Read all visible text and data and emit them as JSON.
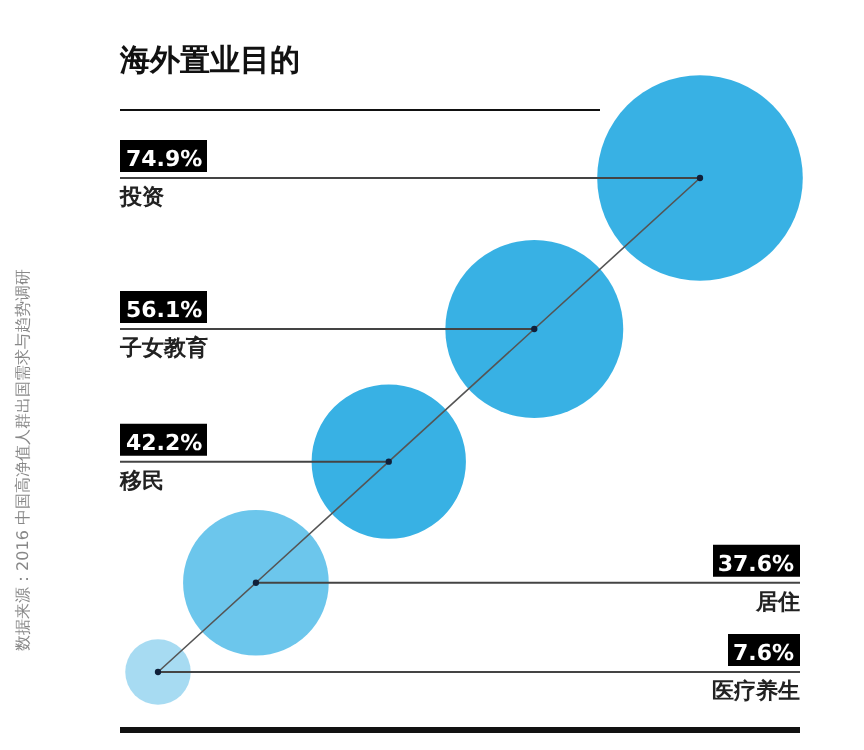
{
  "chart_data": {
    "type": "other",
    "title": "海外置业目的",
    "categories": [
      "投资",
      "子女教育",
      "移民",
      "居住",
      "医疗养生"
    ],
    "values": [
      74.9,
      56.1,
      42.2,
      37.6,
      7.6
    ],
    "value_labels": [
      "74.9%",
      "56.1%",
      "42.2%",
      "37.6%",
      "7.6%"
    ],
    "colors": [
      "#22a9e1",
      "#22a9e1",
      "#22a9e1",
      "#5cc0ea",
      "#9dd7f1"
    ],
    "annotations": [
      "数据来源：2016 中国高净值人群出国需求与趋势调研"
    ]
  }
}
